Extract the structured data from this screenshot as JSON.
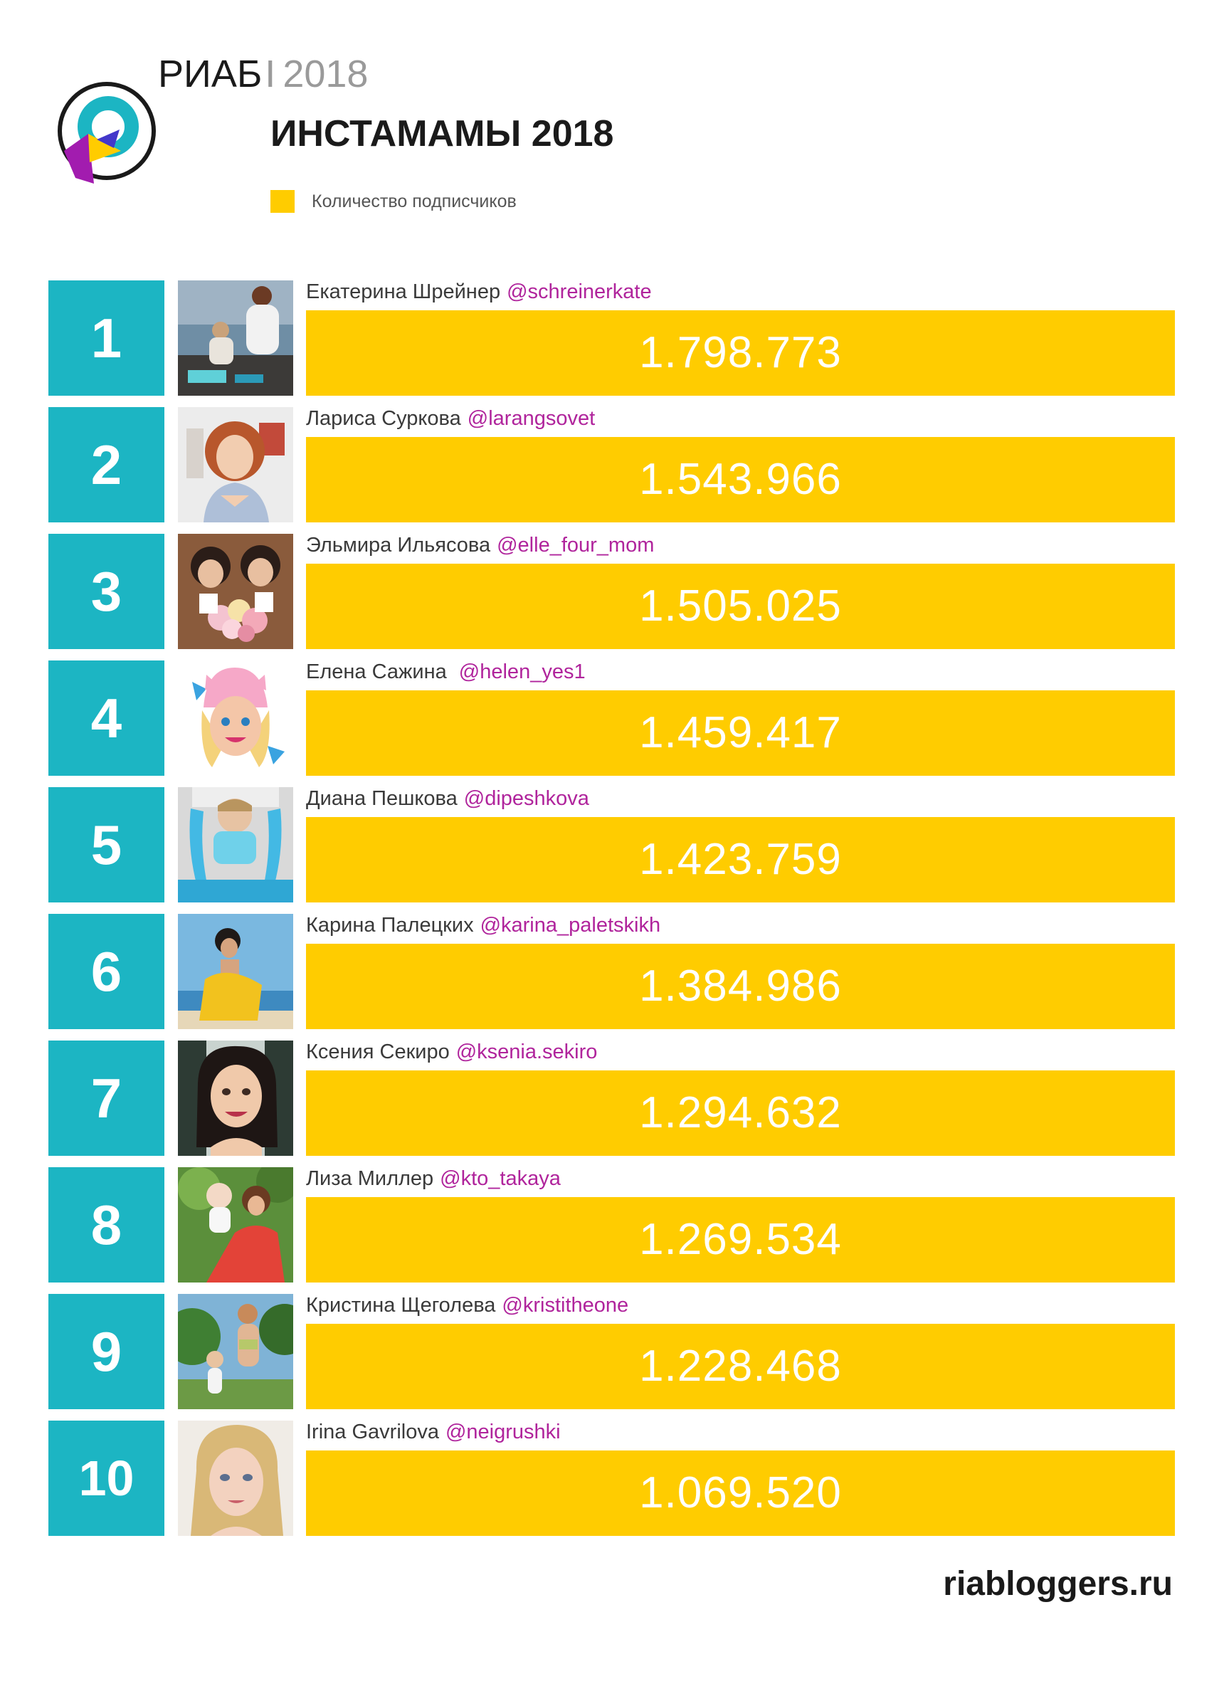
{
  "header": {
    "brand": "РИАБ",
    "separator": "I",
    "year": "2018",
    "title": "ИНСТАМАМЫ 2018",
    "legend_label": "Количество подписчиков"
  },
  "colors": {
    "accent": "#ffcc00",
    "rank": "#1cb5c3",
    "handle": "#b0249c",
    "logo_purple": "#a21caf",
    "logo_yellow": "#ffcc00",
    "logo_indigo": "#4338ca"
  },
  "chart_data": {
    "type": "bar",
    "orientation": "horizontal",
    "series": [
      {
        "name": "Количество подписчиков",
        "values": [
          1798773,
          1543966,
          1505025,
          1459417,
          1423759,
          1384986,
          1294632,
          1269534,
          1228468,
          1069520
        ]
      }
    ],
    "legend": "top-left",
    "grid": false
  },
  "ranking": [
    {
      "rank": "1",
      "name": "Екатерина Шрейнер",
      "handle": "@schreinerkate",
      "followers": "1.798.773",
      "photo": "beach-photo"
    },
    {
      "rank": "2",
      "name": "Лариса Суркова",
      "handle": "@larangsovet",
      "followers": "1.543.966",
      "photo": "portrait-photo"
    },
    {
      "rank": "3",
      "name": "Эльмира Ильясова",
      "handle": "@elle_four_mom",
      "followers": "1.505.025",
      "photo": "kids-flowers-photo"
    },
    {
      "rank": "4",
      "name": "Елена Сажина ",
      "handle": "@helen_yes1",
      "followers": "1.459.417",
      "photo": "cartoon-avatar"
    },
    {
      "rank": "5",
      "name": "Диана Пешкова",
      "handle": "@dipeshkova",
      "followers": "1.423.759",
      "photo": "child-slime-photo"
    },
    {
      "rank": "6",
      "name": "Карина Палецких",
      "handle": "@karina_paletskikh",
      "followers": "1.384.986",
      "photo": "sea-photo"
    },
    {
      "rank": "7",
      "name": "Ксения Секиро",
      "handle": "@ksenia.sekiro",
      "followers": "1.294.632",
      "photo": "cartoon-portrait"
    },
    {
      "rank": "8",
      "name": "Лиза Миллер",
      "handle": "@kto_takaya",
      "followers": "1.269.534",
      "photo": "garden-photo"
    },
    {
      "rank": "9",
      "name": "Кристина Щеголева",
      "handle": "@kristitheone",
      "followers": "1.228.468",
      "photo": "garden-family-photo"
    },
    {
      "rank": "10",
      "name": "Irina Gavrilova",
      "handle": "@neigrushki",
      "followers": "1.069.520",
      "photo": "blonde-portrait"
    }
  ],
  "footer": {
    "site": "riabloggers.ru"
  }
}
